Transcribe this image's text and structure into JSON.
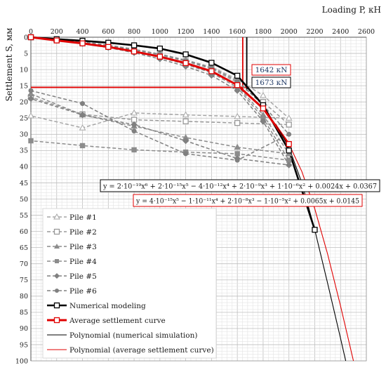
{
  "chart_data": {
    "type": "line",
    "xlabel": "Loading P, кН",
    "ylabel": "Settlement S, мм",
    "xlim": [
      0,
      2600
    ],
    "ylim": [
      0,
      100
    ],
    "y_reversed": true,
    "x_axis_position": "top",
    "grid": "major and minor",
    "xticks": [
      0,
      200,
      400,
      600,
      800,
      1000,
      1200,
      1400,
      1600,
      1800,
      2000,
      2200,
      2400,
      2600
    ],
    "yticks": [
      0,
      5,
      10,
      15,
      20,
      25,
      30,
      35,
      40,
      45,
      50,
      55,
      60,
      65,
      70,
      75,
      80,
      85,
      90,
      95,
      100
    ],
    "series": [
      {
        "name": "Pile #1",
        "color": "#a6a6a6",
        "dash": "5,3",
        "marker": "triangle-open",
        "points": [
          [
            0,
            0
          ],
          [
            200,
            0.7
          ],
          [
            400,
            1.4
          ],
          [
            600,
            2.4
          ],
          [
            800,
            3.7
          ],
          [
            1000,
            5.2
          ],
          [
            1200,
            7.0
          ],
          [
            1400,
            9.2
          ],
          [
            1600,
            13.0
          ],
          [
            1800,
            18.0
          ],
          [
            2000,
            25.0
          ],
          [
            1600,
            24.5
          ],
          [
            1200,
            24.0
          ],
          [
            800,
            23.4
          ],
          [
            400,
            28.0
          ],
          [
            0,
            24.3
          ]
        ]
      },
      {
        "name": "Pile #2",
        "color": "#999999",
        "dash": "5,3",
        "marker": "square-open",
        "points": [
          [
            0,
            0
          ],
          [
            200,
            0.8
          ],
          [
            400,
            1.6
          ],
          [
            600,
            2.6
          ],
          [
            800,
            3.9
          ],
          [
            1000,
            5.5
          ],
          [
            1200,
            7.4
          ],
          [
            1400,
            9.8
          ],
          [
            1600,
            14.0
          ],
          [
            1800,
            20.0
          ],
          [
            2000,
            27.0
          ],
          [
            1600,
            26.5
          ],
          [
            1200,
            26.0
          ],
          [
            800,
            25.5
          ],
          [
            400,
            23.8
          ],
          [
            0,
            18.5
          ]
        ]
      },
      {
        "name": "Pile #3",
        "color": "#8c8c8c",
        "dash": "5,3",
        "marker": "triangle",
        "points": [
          [
            0,
            0
          ],
          [
            200,
            0.8
          ],
          [
            400,
            1.7
          ],
          [
            600,
            2.8
          ],
          [
            800,
            4.2
          ],
          [
            1000,
            5.9
          ],
          [
            1200,
            7.9
          ],
          [
            1400,
            10.4
          ],
          [
            1600,
            15.0
          ],
          [
            1800,
            24.0
          ],
          [
            2000,
            36.0
          ],
          [
            1600,
            34.0
          ],
          [
            1200,
            31.0
          ],
          [
            800,
            27.5
          ],
          [
            400,
            24.0
          ],
          [
            0,
            17.5
          ]
        ]
      },
      {
        "name": "Pile #4",
        "color": "#8c8c8c",
        "dash": "5,3",
        "marker": "square",
        "points": [
          [
            0,
            0
          ],
          [
            200,
            0.9
          ],
          [
            400,
            1.8
          ],
          [
            600,
            2.9
          ],
          [
            800,
            4.4
          ],
          [
            1000,
            6.2
          ],
          [
            1200,
            8.4
          ],
          [
            1400,
            11.0
          ],
          [
            1600,
            15.5
          ],
          [
            1800,
            25.0
          ],
          [
            2000,
            38.0
          ],
          [
            1600,
            36.0
          ],
          [
            1200,
            35.5
          ],
          [
            800,
            34.8
          ],
          [
            400,
            33.5
          ],
          [
            0,
            32.0
          ]
        ]
      },
      {
        "name": "Pile #5",
        "color": "#808080",
        "dash": "5,3",
        "marker": "diamond",
        "points": [
          [
            0,
            0
          ],
          [
            200,
            1.0
          ],
          [
            400,
            2.0
          ],
          [
            600,
            3.2
          ],
          [
            800,
            4.8
          ],
          [
            1000,
            6.7
          ],
          [
            1200,
            9.0
          ],
          [
            1400,
            11.8
          ],
          [
            1600,
            16.5
          ],
          [
            1800,
            26.0
          ],
          [
            2000,
            39.5
          ],
          [
            1600,
            37.5
          ],
          [
            1200,
            32.0
          ],
          [
            800,
            27.0
          ],
          [
            400,
            24.0
          ],
          [
            0,
            19.0
          ]
        ]
      },
      {
        "name": "Pile #6",
        "color": "#808080",
        "dash": "5,3",
        "marker": "circle",
        "points": [
          [
            0,
            0
          ],
          [
            200,
            0.7
          ],
          [
            400,
            1.5
          ],
          [
            600,
            2.5
          ],
          [
            800,
            3.8
          ],
          [
            1000,
            5.3
          ],
          [
            1200,
            7.2
          ],
          [
            1400,
            9.5
          ],
          [
            1600,
            13.5
          ],
          [
            1800,
            21.0
          ],
          [
            2000,
            30.0
          ],
          [
            1600,
            38.0
          ],
          [
            1200,
            36.0
          ],
          [
            800,
            29.0
          ],
          [
            400,
            20.5
          ],
          [
            0,
            16.5
          ]
        ]
      },
      {
        "name": "Numerical modeling",
        "color": "#000000",
        "width": 2.6,
        "marker": "square-open",
        "points": [
          [
            0,
            0
          ],
          [
            200,
            0.6
          ],
          [
            400,
            1.1
          ],
          [
            600,
            1.7
          ],
          [
            800,
            2.5
          ],
          [
            1000,
            3.5
          ],
          [
            1200,
            5.3
          ],
          [
            1400,
            7.9
          ],
          [
            1600,
            11.9
          ],
          [
            1800,
            21.0
          ],
          [
            2000,
            35.0
          ],
          [
            2200,
            59.5
          ]
        ]
      },
      {
        "name": "Average settlement curve",
        "color": "#e00000",
        "width": 3.0,
        "marker": "square-open",
        "points": [
          [
            0,
            0
          ],
          [
            200,
            1.0
          ],
          [
            400,
            1.9
          ],
          [
            600,
            3.0
          ],
          [
            800,
            4.4
          ],
          [
            1000,
            6.0
          ],
          [
            1200,
            8.0
          ],
          [
            1400,
            10.5
          ],
          [
            1600,
            14.8
          ],
          [
            1800,
            22.0
          ],
          [
            2000,
            33.0
          ]
        ]
      },
      {
        "name": "Polynomial (numerical simulation)",
        "color": "#000000",
        "width": 1.1,
        "points": [
          [
            1900,
            27.0
          ],
          [
            2000,
            34.0
          ],
          [
            2100,
            45.0
          ],
          [
            2200,
            59.5
          ],
          [
            2300,
            76.0
          ],
          [
            2400,
            93.0
          ],
          [
            2440,
            100
          ]
        ]
      },
      {
        "name": "Polynomial (average settlement curve)",
        "color": "#e00000",
        "width": 1.1,
        "points": [
          [
            1900,
            27.0
          ],
          [
            2000,
            33.0
          ],
          [
            2100,
            41.5
          ],
          [
            2200,
            53.0
          ],
          [
            2300,
            67.0
          ],
          [
            2400,
            83.0
          ],
          [
            2500,
            100
          ]
        ]
      }
    ],
    "reference_lines": [
      {
        "label": "1642 кN",
        "x": 1642,
        "color": "#e00000"
      },
      {
        "label": "1673 кN",
        "x": 1673,
        "color": "#000000"
      },
      {
        "y": 15.5,
        "color": "#e00000"
      }
    ],
    "equations": [
      "y = 2·10⁻¹⁹x⁶ + 2·10⁻¹⁵x⁵ − 4·10⁻¹²x⁴ + 2·10⁻⁹x³ + 1·10⁻⁶x² + 0.0024x + 0.0367",
      "y = 4·10⁻¹⁵x⁵ − 1·10⁻¹¹x⁴ + 2·10⁻⁸x³ − 1·10⁻⁵x² + 0.0065x + 0.0145"
    ],
    "legend_position": "bottom-left"
  }
}
